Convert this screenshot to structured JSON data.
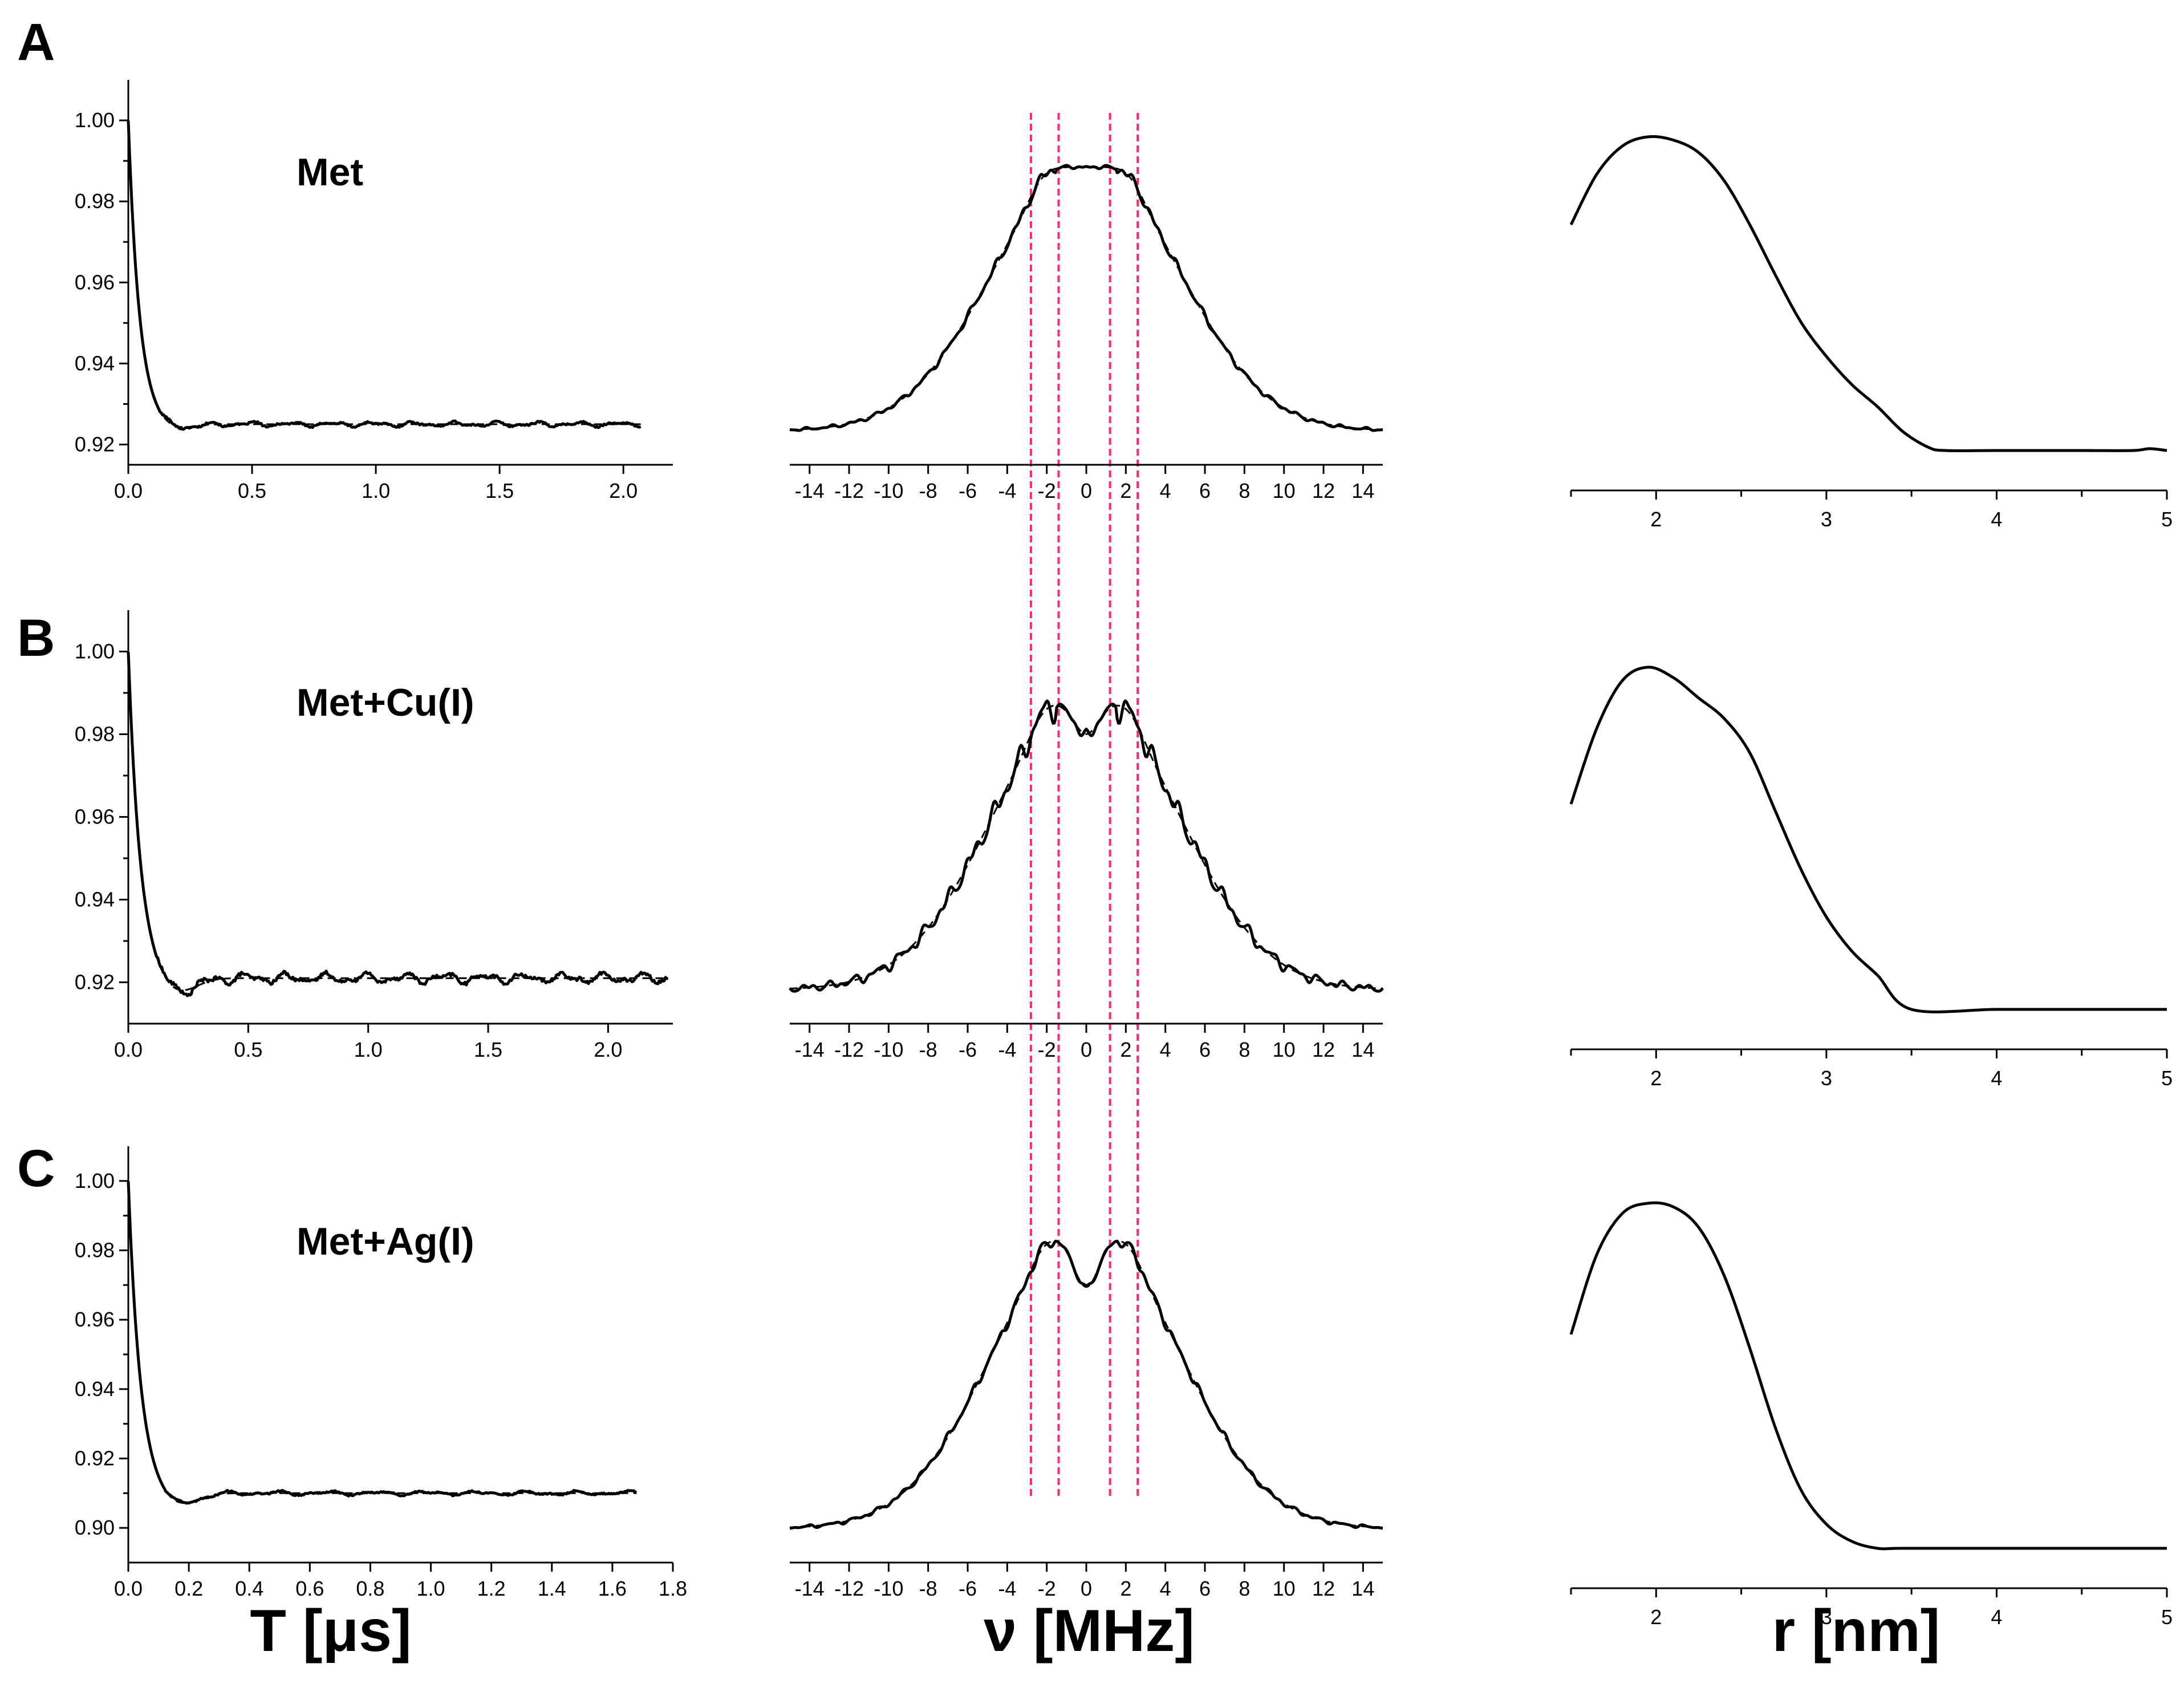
{
  "colors": {
    "ink": "#000000",
    "guide": "#ff2a6d",
    "background": "#ffffff"
  },
  "axis_titles": {
    "time": "T [μs]",
    "freq": "ν [MHz]",
    "dist": "r [nm]"
  },
  "guide_lines_mhz": [
    -2.8,
    -1.4,
    1.2,
    2.6
  ],
  "chart_data": [
    {
      "panel": "A",
      "type": "line",
      "label": "Met",
      "time_domain": {
        "xlim": [
          0,
          2.2
        ],
        "ylim": [
          0.915,
          1.01
        ],
        "xticks": [
          0.0,
          0.5,
          1.0,
          1.5,
          2.0
        ],
        "xtick_labels": [
          "0.0",
          "0.5",
          "1.0",
          "1.5",
          "2.0"
        ],
        "yticks": [
          0.92,
          0.94,
          0.96,
          0.98,
          1.0
        ],
        "ytick_labels": [
          "0.92",
          "0.94",
          "0.96",
          "0.98",
          "1.00"
        ],
        "x_end": 2.07,
        "baseline": 0.925,
        "decay": 0.045,
        "undershoot": -0.0015,
        "noise": 0.0007
      },
      "frequency_domain": {
        "xlim": [
          -15,
          15
        ],
        "xticks": [
          -14,
          -12,
          -10,
          -8,
          -6,
          -4,
          -2,
          0,
          2,
          4,
          6,
          8,
          10,
          12,
          14
        ],
        "xtick_labels": [
          "-14",
          "-12",
          "-10",
          "-8",
          "-6",
          "-4",
          "-2",
          "0",
          "2",
          "4",
          "6",
          "8",
          "10",
          "12",
          "14"
        ],
        "peak": 0.99,
        "dip": 0.01,
        "wiggle": 0.03
      },
      "distance_distribution": {
        "xlim": [
          1.5,
          5
        ],
        "xticks": [
          2,
          3,
          4,
          5
        ],
        "xtick_labels": [
          "2",
          "3",
          "4",
          "5"
        ],
        "r": [
          1.5,
          1.65,
          1.8,
          1.95,
          2.1,
          2.25,
          2.4,
          2.55,
          2.7,
          2.85,
          3.0,
          3.15,
          3.3,
          3.45,
          3.6,
          3.7,
          4.0,
          4.5,
          4.8,
          4.9,
          5.0
        ],
        "p": [
          0.72,
          0.88,
          0.97,
          1.0,
          0.99,
          0.95,
          0.86,
          0.72,
          0.56,
          0.41,
          0.3,
          0.21,
          0.14,
          0.06,
          0.01,
          0.0,
          0.0,
          0.0,
          0.0,
          0.006,
          0.0
        ]
      }
    },
    {
      "panel": "B",
      "type": "line",
      "label": "Met+Cu(I)",
      "time_domain": {
        "xlim": [
          0,
          2.27
        ],
        "ylim": [
          0.91,
          1.01
        ],
        "xticks": [
          0.0,
          0.5,
          1.0,
          1.5,
          2.0
        ],
        "xtick_labels": [
          "0.0",
          "0.5",
          "1.0",
          "1.5",
          "2.0"
        ],
        "yticks": [
          0.92,
          0.94,
          0.96,
          0.98,
          1.0
        ],
        "ytick_labels": [
          "0.92",
          "0.94",
          "0.96",
          "0.98",
          "1.00"
        ],
        "x_end": 2.25,
        "baseline": 0.921,
        "decay": 0.05,
        "undershoot": -0.004,
        "noise": 0.0014
      },
      "frequency_domain": {
        "xlim": [
          -15,
          15
        ],
        "xticks": [
          -14,
          -12,
          -10,
          -8,
          -6,
          -4,
          -2,
          0,
          2,
          4,
          6,
          8,
          10,
          12,
          14
        ],
        "xtick_labels": [
          "-14",
          "-12",
          "-10",
          "-8",
          "-6",
          "-4",
          "-2",
          "0",
          "2",
          "4",
          "6",
          "8",
          "10",
          "12",
          "14"
        ],
        "peak": 0.98,
        "dip": 0.12,
        "wiggle": 0.07
      },
      "distance_distribution": {
        "xlim": [
          1.5,
          5
        ],
        "xticks": [
          2,
          3,
          4,
          5
        ],
        "xtick_labels": [
          "2",
          "3",
          "4",
          "5"
        ],
        "r": [
          1.5,
          1.65,
          1.8,
          1.95,
          2.1,
          2.25,
          2.4,
          2.55,
          2.7,
          2.85,
          3.0,
          3.15,
          3.3,
          3.5,
          4.0,
          4.5,
          5.0
        ],
        "p": [
          0.6,
          0.82,
          0.96,
          1.0,
          0.97,
          0.91,
          0.85,
          0.75,
          0.58,
          0.41,
          0.27,
          0.17,
          0.1,
          0.0,
          0.0,
          0.0,
          0.0
        ]
      }
    },
    {
      "panel": "C",
      "type": "line",
      "label": "Met+Ag(I)",
      "time_domain": {
        "xlim": [
          0,
          1.8
        ],
        "ylim": [
          0.89,
          1.01
        ],
        "xticks": [
          0.0,
          0.2,
          0.4,
          0.6,
          0.8,
          1.0,
          1.2,
          1.4,
          1.6,
          1.8
        ],
        "xtick_labels": [
          "0.0",
          "0.2",
          "0.4",
          "0.6",
          "0.8",
          "1.0",
          "1.2",
          "1.4",
          "1.6",
          "1.8"
        ],
        "yticks": [
          0.9,
          0.92,
          0.94,
          0.96,
          0.98,
          1.0
        ],
        "ytick_labels": [
          "0.90",
          "0.92",
          "0.94",
          "0.96",
          "0.98",
          "1.00"
        ],
        "x_end": 1.68,
        "baseline": 0.91,
        "decay": 0.04,
        "undershoot": -0.004,
        "noise": 0.0007
      },
      "frequency_domain": {
        "xlim": [
          -15,
          15
        ],
        "xticks": [
          -14,
          -12,
          -10,
          -8,
          -6,
          -4,
          -2,
          0,
          2,
          4,
          6,
          8,
          10,
          12,
          14
        ],
        "xtick_labels": [
          "-14",
          "-12",
          "-10",
          "-8",
          "-6",
          "-4",
          "-2",
          "0",
          "2",
          "4",
          "6",
          "8",
          "10",
          "12",
          "14"
        ],
        "peak": 0.985,
        "dip": 0.18,
        "wiggle": 0.03
      },
      "distance_distribution": {
        "xlim": [
          1.5,
          5
        ],
        "xticks": [
          2,
          3,
          4,
          5
        ],
        "xtick_labels": [
          "2",
          "3",
          "4",
          "5"
        ],
        "r": [
          1.5,
          1.65,
          1.8,
          1.95,
          2.1,
          2.25,
          2.4,
          2.55,
          2.7,
          2.85,
          3.0,
          3.15,
          3.3,
          3.45,
          4.0,
          4.5,
          5.0
        ],
        "p": [
          0.62,
          0.85,
          0.97,
          1.0,
          0.99,
          0.93,
          0.79,
          0.58,
          0.35,
          0.17,
          0.07,
          0.02,
          0.0,
          0.0,
          0.0,
          0.0,
          0.0
        ]
      }
    }
  ]
}
